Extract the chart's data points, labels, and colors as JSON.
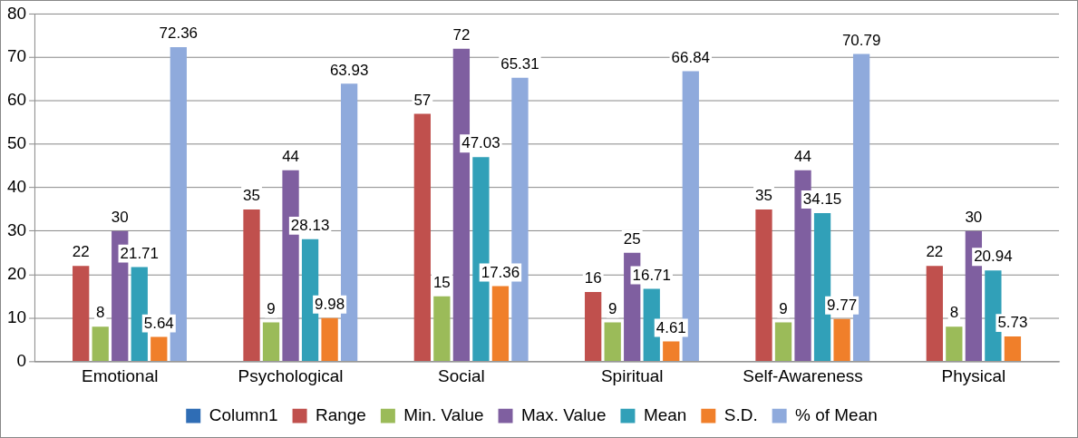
{
  "chart_data": {
    "type": "bar",
    "categories": [
      "Emotional",
      "Psychological",
      "Social",
      "Spiritual",
      "Self-Awareness",
      "Physical"
    ],
    "series": [
      {
        "name": "Column1",
        "color": "#2f6db5",
        "values": [
          null,
          null,
          null,
          null,
          null,
          null
        ]
      },
      {
        "name": "Range",
        "color": "#c0504d",
        "values": [
          22,
          35,
          57,
          16,
          35,
          22
        ]
      },
      {
        "name": "Min. Value",
        "color": "#9bbb59",
        "values": [
          8,
          9,
          15,
          9,
          9,
          8
        ]
      },
      {
        "name": "Max. Value",
        "color": "#7f5fa0",
        "values": [
          30,
          44,
          72,
          25,
          44,
          30
        ]
      },
      {
        "name": "Mean",
        "color": "#31a0b8",
        "values": [
          21.71,
          28.13,
          47.03,
          16.71,
          34.15,
          20.94
        ]
      },
      {
        "name": "S.D.",
        "color": "#f07f2a",
        "values": [
          5.64,
          9.98,
          17.36,
          4.61,
          9.77,
          5.73
        ]
      },
      {
        "name": "% of Mean",
        "color": "#8faadc",
        "values": [
          72.36,
          63.93,
          65.31,
          66.84,
          70.79,
          null
        ]
      }
    ],
    "ylim": [
      0,
      80
    ],
    "yticks": [
      0,
      10,
      20,
      30,
      40,
      50,
      60,
      70,
      80
    ],
    "grid": "y",
    "legend": "bottom",
    "data_labels": true
  }
}
